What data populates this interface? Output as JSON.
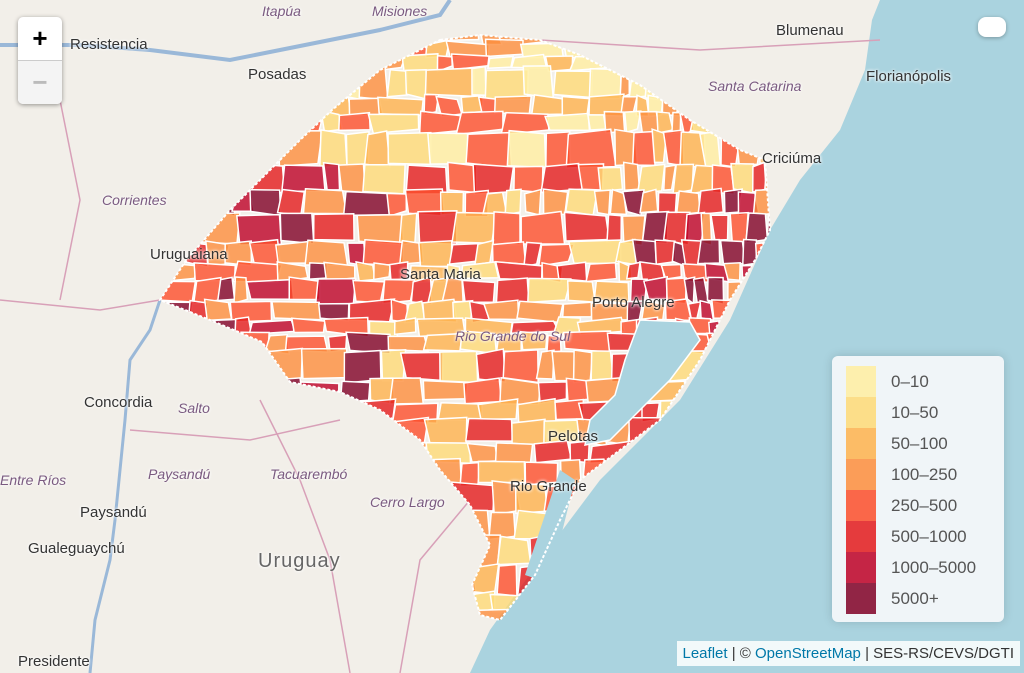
{
  "map": {
    "place_labels": [
      {
        "name": "Itapúa",
        "style": "it",
        "pos": "itapua"
      },
      {
        "name": "Misiones",
        "style": "it",
        "pos": "misiones"
      },
      {
        "name": "Resistencia",
        "style": "",
        "pos": "resistencia"
      },
      {
        "name": "Posadas",
        "style": "",
        "pos": "posadas"
      },
      {
        "name": "Blumenau",
        "style": "",
        "pos": "blumenau"
      },
      {
        "name": "Santa Catarina",
        "style": "it",
        "pos": "sc"
      },
      {
        "name": "Florianópolis",
        "style": "",
        "pos": "floripa"
      },
      {
        "name": "Criciúma",
        "style": "",
        "pos": "criciuma"
      },
      {
        "name": "Corrientes",
        "style": "it",
        "pos": "corrientes"
      },
      {
        "name": "Uruguaiana",
        "style": "",
        "pos": "uruguaiana"
      },
      {
        "name": "Santa Maria",
        "style": "",
        "pos": "santamaria"
      },
      {
        "name": "Rio Grande do Sul",
        "style": "it",
        "pos": "rs"
      },
      {
        "name": "Porto Alegre",
        "style": "",
        "pos": "poa"
      },
      {
        "name": "Concordia",
        "style": "",
        "pos": "concordia"
      },
      {
        "name": "Salto",
        "style": "it",
        "pos": "salto"
      },
      {
        "name": "Pelotas",
        "style": "",
        "pos": "pelotas"
      },
      {
        "name": "Rio Grande",
        "style": "",
        "pos": "riogrande"
      },
      {
        "name": "Entre Ríos",
        "style": "it",
        "pos": "entrerios"
      },
      {
        "name": "Paysandú",
        "style": "it",
        "pos": "paysandu1"
      },
      {
        "name": "Tacuarembó",
        "style": "it",
        "pos": "tacuarembo"
      },
      {
        "name": "Cerro Largo",
        "style": "it",
        "pos": "cerrolargo"
      },
      {
        "name": "Paysandú",
        "style": "",
        "pos": "paysandu2"
      },
      {
        "name": "Gualeguaychú",
        "style": "",
        "pos": "gualeguaychu"
      },
      {
        "name": "Uruguay",
        "style": "big",
        "pos": "uruguay"
      },
      {
        "name": "Presidente",
        "style": "",
        "pos": "presidente"
      }
    ],
    "colors": {
      "land": "#f2efe9",
      "water": "#aad3df"
    }
  },
  "zoom_controls": {
    "zoom_in": "+",
    "zoom_out": "−"
  },
  "legend": {
    "items": [
      {
        "label": "0–10",
        "color": "#ffeda0"
      },
      {
        "label": "10–50",
        "color": "#fed976"
      },
      {
        "label": "50–100",
        "color": "#feb24c"
      },
      {
        "label": "100–250",
        "color": "#fd8d3c"
      },
      {
        "label": "250–500",
        "color": "#fc4e2a"
      },
      {
        "label": "500–1000",
        "color": "#e31a1c"
      },
      {
        "label": "1000–5000",
        "color": "#bd0026"
      },
      {
        "label": "5000+",
        "color": "#800026"
      }
    ]
  },
  "attribution": {
    "leaflet": "Leaflet",
    "sep": " | © ",
    "osm": "OpenStreetMap",
    "source": " | SES-RS/CEVS/DGTI"
  }
}
